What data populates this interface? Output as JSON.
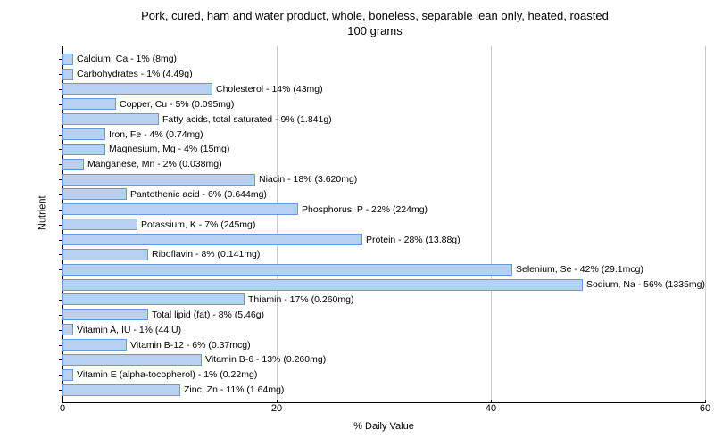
{
  "chart": {
    "type": "bar",
    "title_line1": "Pork, cured, ham and water product, whole, boneless, separable lean only, heated, roasted",
    "title_line2": "100 grams",
    "title_fontsize": 13,
    "y_axis_label": "Nutrient",
    "x_axis_label": "% Daily Value",
    "label_fontsize": 11,
    "xlim": [
      0,
      60
    ],
    "xtick_step": 20,
    "xticks": [
      0,
      20,
      40,
      60
    ],
    "background_color": "#ffffff",
    "grid_color": "#cccccc",
    "bar_fill_color": "#b8d0f0",
    "bar_border_color": "#6699dd",
    "bar_label_fontsize": 10.5,
    "bars": [
      {
        "label": "Calcium, Ca - 1% (8mg)",
        "value": 1
      },
      {
        "label": "Carbohydrates - 1% (4.49g)",
        "value": 1
      },
      {
        "label": "Cholesterol - 14% (43mg)",
        "value": 14
      },
      {
        "label": "Copper, Cu - 5% (0.095mg)",
        "value": 5
      },
      {
        "label": "Fatty acids, total saturated - 9% (1.841g)",
        "value": 9
      },
      {
        "label": "Iron, Fe - 4% (0.74mg)",
        "value": 4
      },
      {
        "label": "Magnesium, Mg - 4% (15mg)",
        "value": 4
      },
      {
        "label": "Manganese, Mn - 2% (0.038mg)",
        "value": 2
      },
      {
        "label": "Niacin - 18% (3.620mg)",
        "value": 18
      },
      {
        "label": "Pantothenic acid - 6% (0.644mg)",
        "value": 6
      },
      {
        "label": "Phosphorus, P - 22% (224mg)",
        "value": 22
      },
      {
        "label": "Potassium, K - 7% (245mg)",
        "value": 7
      },
      {
        "label": "Protein - 28% (13.88g)",
        "value": 28
      },
      {
        "label": "Riboflavin - 8% (0.141mg)",
        "value": 8
      },
      {
        "label": "Selenium, Se - 42% (29.1mcg)",
        "value": 42
      },
      {
        "label": "Sodium, Na - 56% (1335mg)",
        "value": 56
      },
      {
        "label": "Thiamin - 17% (0.260mg)",
        "value": 17
      },
      {
        "label": "Total lipid (fat) - 8% (5.46g)",
        "value": 8
      },
      {
        "label": "Vitamin A, IU - 1% (44IU)",
        "value": 1
      },
      {
        "label": "Vitamin B-12 - 6% (0.37mcg)",
        "value": 6
      },
      {
        "label": "Vitamin B-6 - 13% (0.260mg)",
        "value": 13
      },
      {
        "label": "Vitamin E (alpha-tocopherol) - 1% (0.22mg)",
        "value": 1
      },
      {
        "label": "Zinc, Zn - 11% (1.64mg)",
        "value": 11
      }
    ]
  }
}
